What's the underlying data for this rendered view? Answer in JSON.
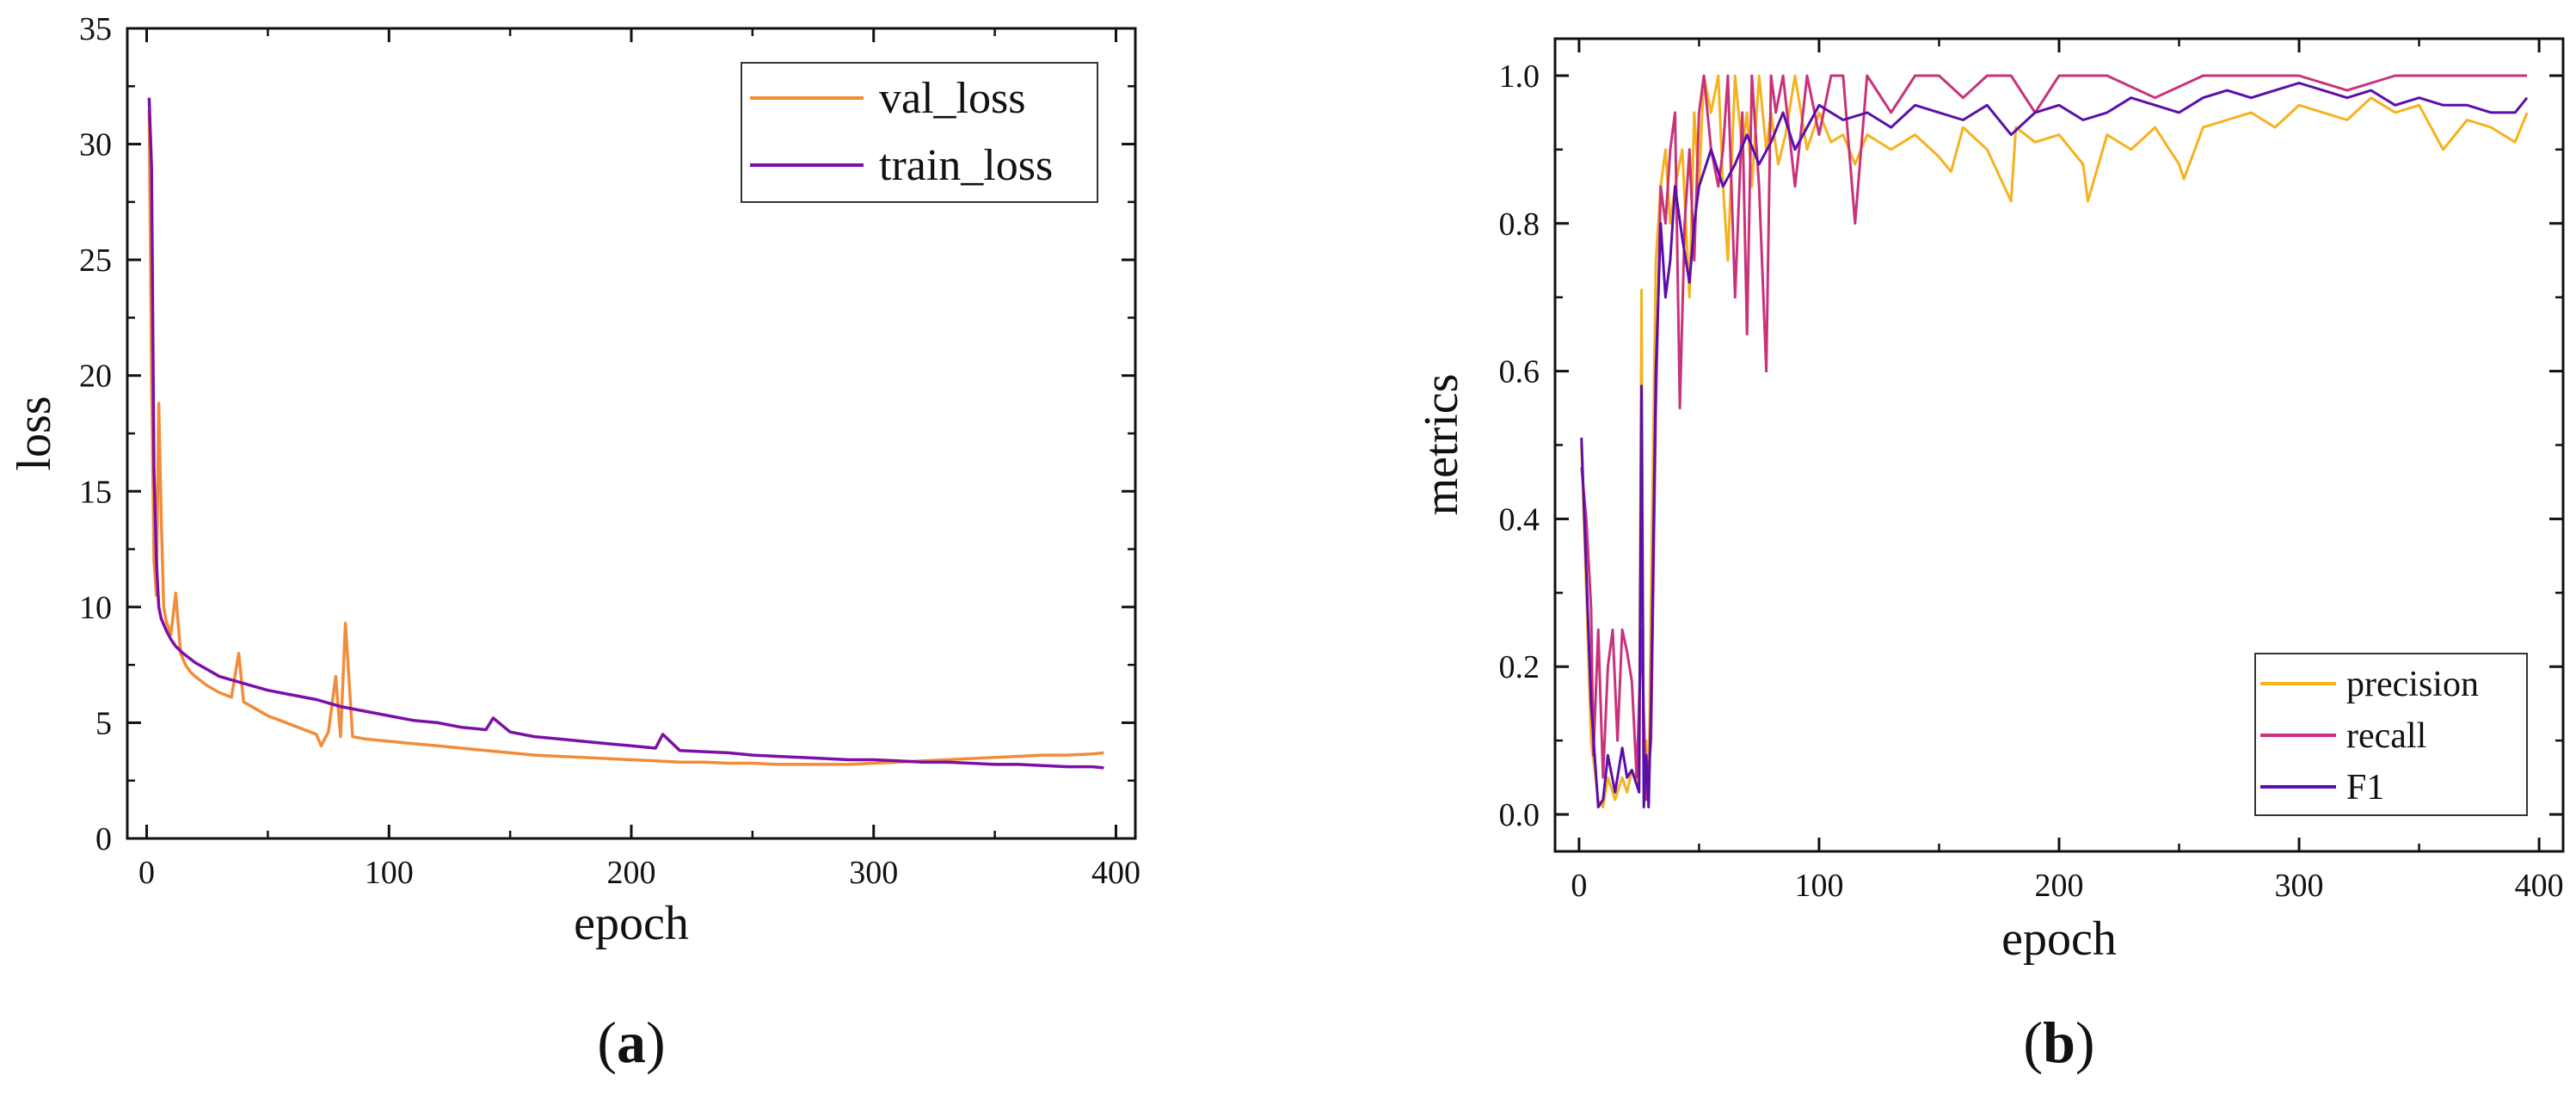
{
  "chart_data": [
    {
      "panel": "(a)",
      "panel_open": "(",
      "panel_letter": "a",
      "panel_close": ")",
      "type": "line",
      "xlabel": "epoch",
      "ylabel": "loss",
      "xlim": [
        -8,
        408
      ],
      "ylim": [
        0,
        35
      ],
      "xticks": [
        0,
        100,
        200,
        300,
        400
      ],
      "yticks": [
        0,
        5,
        10,
        15,
        20,
        25,
        30,
        35
      ],
      "legend_position": "top-right",
      "series": [
        {
          "name": "val_loss",
          "color": "#F28C38",
          "x": [
            1,
            2,
            3,
            4,
            5,
            6,
            7,
            8,
            10,
            12,
            14,
            16,
            18,
            20,
            25,
            30,
            35,
            38,
            40,
            45,
            50,
            55,
            60,
            65,
            70,
            72,
            75,
            78,
            80,
            82,
            85,
            90,
            100,
            110,
            120,
            130,
            140,
            150,
            160,
            170,
            180,
            190,
            200,
            210,
            220,
            230,
            240,
            250,
            260,
            270,
            280,
            290,
            300,
            310,
            320,
            330,
            340,
            350,
            360,
            370,
            380,
            390,
            395
          ],
          "y": [
            31.5,
            20,
            12,
            10.5,
            18.8,
            14,
            10,
            9.4,
            8.8,
            10.6,
            8,
            7.5,
            7.2,
            7,
            6.6,
            6.3,
            6.1,
            8.0,
            5.9,
            5.6,
            5.3,
            5.1,
            4.9,
            4.7,
            4.5,
            4.0,
            4.6,
            7.0,
            4.4,
            9.3,
            4.4,
            4.3,
            4.2,
            4.1,
            4.0,
            3.9,
            3.8,
            3.7,
            3.6,
            3.55,
            3.5,
            3.45,
            3.4,
            3.35,
            3.3,
            3.3,
            3.25,
            3.25,
            3.2,
            3.2,
            3.2,
            3.2,
            3.25,
            3.3,
            3.35,
            3.4,
            3.45,
            3.5,
            3.55,
            3.6,
            3.6,
            3.65,
            3.7
          ]
        },
        {
          "name": "train_loss",
          "color": "#7B0FA8",
          "x": [
            1,
            2,
            3,
            4,
            5,
            6,
            8,
            10,
            12,
            15,
            20,
            25,
            30,
            40,
            50,
            60,
            70,
            80,
            90,
            100,
            110,
            120,
            130,
            140,
            143,
            150,
            160,
            170,
            180,
            190,
            200,
            210,
            213,
            220,
            230,
            240,
            250,
            260,
            270,
            280,
            290,
            300,
            310,
            320,
            330,
            340,
            350,
            360,
            370,
            380,
            390,
            395
          ],
          "y": [
            32.0,
            29,
            16,
            12,
            10,
            9.5,
            9.0,
            8.6,
            8.3,
            8.0,
            7.6,
            7.3,
            7.0,
            6.7,
            6.4,
            6.2,
            6.0,
            5.7,
            5.5,
            5.3,
            5.1,
            5.0,
            4.8,
            4.7,
            5.2,
            4.6,
            4.4,
            4.3,
            4.2,
            4.1,
            4.0,
            3.9,
            4.5,
            3.8,
            3.75,
            3.7,
            3.6,
            3.55,
            3.5,
            3.45,
            3.4,
            3.4,
            3.35,
            3.3,
            3.3,
            3.25,
            3.2,
            3.2,
            3.15,
            3.1,
            3.1,
            3.05
          ]
        }
      ]
    },
    {
      "panel": "(b)",
      "panel_open": "(",
      "panel_letter": "b",
      "panel_close": ")",
      "type": "line",
      "xlabel": "epoch",
      "ylabel": "metrics",
      "xlim": [
        -10,
        410
      ],
      "ylim": [
        -0.05,
        1.05
      ],
      "xticks": [
        0,
        100,
        200,
        300,
        400
      ],
      "yticks": [
        0.0,
        0.2,
        0.4,
        0.6,
        0.8,
        1.0
      ],
      "ytick_labels": [
        "0.0",
        "0.2",
        "0.4",
        "0.6",
        "0.8",
        "1.0"
      ],
      "legend_position": "bottom-right",
      "series": [
        {
          "name": "precision",
          "color": "#F5B21D",
          "x": [
            1,
            3,
            5,
            8,
            10,
            12,
            15,
            18,
            20,
            22,
            25,
            26,
            27,
            28,
            29,
            30,
            32,
            34,
            36,
            38,
            40,
            43,
            46,
            48,
            50,
            52,
            55,
            58,
            60,
            62,
            65,
            68,
            70,
            72,
            75,
            78,
            80,
            83,
            86,
            90,
            95,
            100,
            105,
            110,
            115,
            120,
            130,
            140,
            150,
            155,
            160,
            170,
            180,
            182,
            190,
            200,
            210,
            212,
            220,
            230,
            240,
            250,
            252,
            260,
            270,
            280,
            290,
            300,
            310,
            320,
            330,
            340,
            350,
            360,
            370,
            380,
            390,
            395
          ],
          "y": [
            0.5,
            0.3,
            0.1,
            0.02,
            0.01,
            0.05,
            0.02,
            0.05,
            0.03,
            0.06,
            0.04,
            0.71,
            0.05,
            0.1,
            0.02,
            0.3,
            0.75,
            0.85,
            0.9,
            0.8,
            0.85,
            0.9,
            0.7,
            0.95,
            0.85,
            1.0,
            0.95,
            1.0,
            0.85,
            0.75,
            1.0,
            0.9,
            0.95,
            0.85,
            1.0,
            0.9,
            0.95,
            0.88,
            0.92,
            1.0,
            0.9,
            0.95,
            0.91,
            0.92,
            0.88,
            0.92,
            0.9,
            0.92,
            0.89,
            0.87,
            0.93,
            0.9,
            0.83,
            0.93,
            0.91,
            0.92,
            0.88,
            0.83,
            0.92,
            0.9,
            0.93,
            0.88,
            0.86,
            0.93,
            0.94,
            0.95,
            0.93,
            0.96,
            0.95,
            0.94,
            0.97,
            0.95,
            0.96,
            0.9,
            0.94,
            0.93,
            0.91,
            0.95
          ]
        },
        {
          "name": "recall",
          "color": "#C8327A",
          "x": [
            1,
            3,
            5,
            6,
            8,
            10,
            12,
            14,
            16,
            18,
            20,
            22,
            24,
            26,
            28,
            30,
            32,
            34,
            36,
            38,
            40,
            42,
            44,
            46,
            48,
            50,
            52,
            55,
            58,
            60,
            62,
            65,
            68,
            70,
            72,
            75,
            78,
            80,
            82,
            85,
            90,
            95,
            100,
            105,
            110,
            115,
            120,
            130,
            140,
            150,
            160,
            170,
            180,
            190,
            200,
            220,
            240,
            260,
            280,
            300,
            320,
            340,
            360,
            380,
            395
          ],
          "y": [
            0.47,
            0.4,
            0.28,
            0.08,
            0.25,
            0.05,
            0.2,
            0.25,
            0.1,
            0.25,
            0.22,
            0.18,
            0.05,
            0.25,
            0.02,
            0.1,
            0.55,
            0.85,
            0.8,
            0.9,
            0.95,
            0.55,
            0.8,
            0.9,
            0.75,
            0.95,
            1.0,
            0.9,
            0.85,
            0.9,
            1.0,
            0.7,
            0.95,
            0.65,
            1.0,
            0.85,
            0.6,
            1.0,
            0.95,
            1.0,
            0.85,
            1.0,
            0.92,
            1.0,
            1.0,
            0.8,
            1.0,
            0.95,
            1.0,
            1.0,
            0.97,
            1.0,
            1.0,
            0.95,
            1.0,
            1.0,
            0.97,
            1.0,
            1.0,
            1.0,
            0.98,
            1.0,
            1.0,
            1.0,
            1.0
          ]
        },
        {
          "name": "F1",
          "color": "#5B0FAA",
          "x": [
            1,
            3,
            5,
            8,
            10,
            12,
            15,
            18,
            20,
            22,
            25,
            26,
            27,
            28,
            29,
            30,
            32,
            34,
            36,
            38,
            40,
            43,
            46,
            48,
            50,
            55,
            60,
            65,
            70,
            75,
            80,
            85,
            90,
            95,
            100,
            110,
            120,
            130,
            140,
            150,
            160,
            170,
            180,
            190,
            200,
            210,
            220,
            230,
            240,
            250,
            260,
            270,
            280,
            290,
            300,
            310,
            320,
            330,
            340,
            350,
            360,
            370,
            380,
            390,
            395
          ],
          "y": [
            0.51,
            0.33,
            0.15,
            0.01,
            0.02,
            0.08,
            0.03,
            0.09,
            0.05,
            0.06,
            0.03,
            0.58,
            0.01,
            0.08,
            0.01,
            0.15,
            0.6,
            0.8,
            0.7,
            0.75,
            0.85,
            0.78,
            0.72,
            0.8,
            0.85,
            0.9,
            0.85,
            0.88,
            0.92,
            0.88,
            0.91,
            0.95,
            0.9,
            0.93,
            0.96,
            0.94,
            0.95,
            0.93,
            0.96,
            0.95,
            0.94,
            0.96,
            0.92,
            0.95,
            0.96,
            0.94,
            0.95,
            0.97,
            0.96,
            0.95,
            0.97,
            0.98,
            0.97,
            0.98,
            0.99,
            0.98,
            0.97,
            0.98,
            0.96,
            0.97,
            0.96,
            0.96,
            0.95,
            0.95,
            0.97
          ]
        }
      ]
    }
  ]
}
